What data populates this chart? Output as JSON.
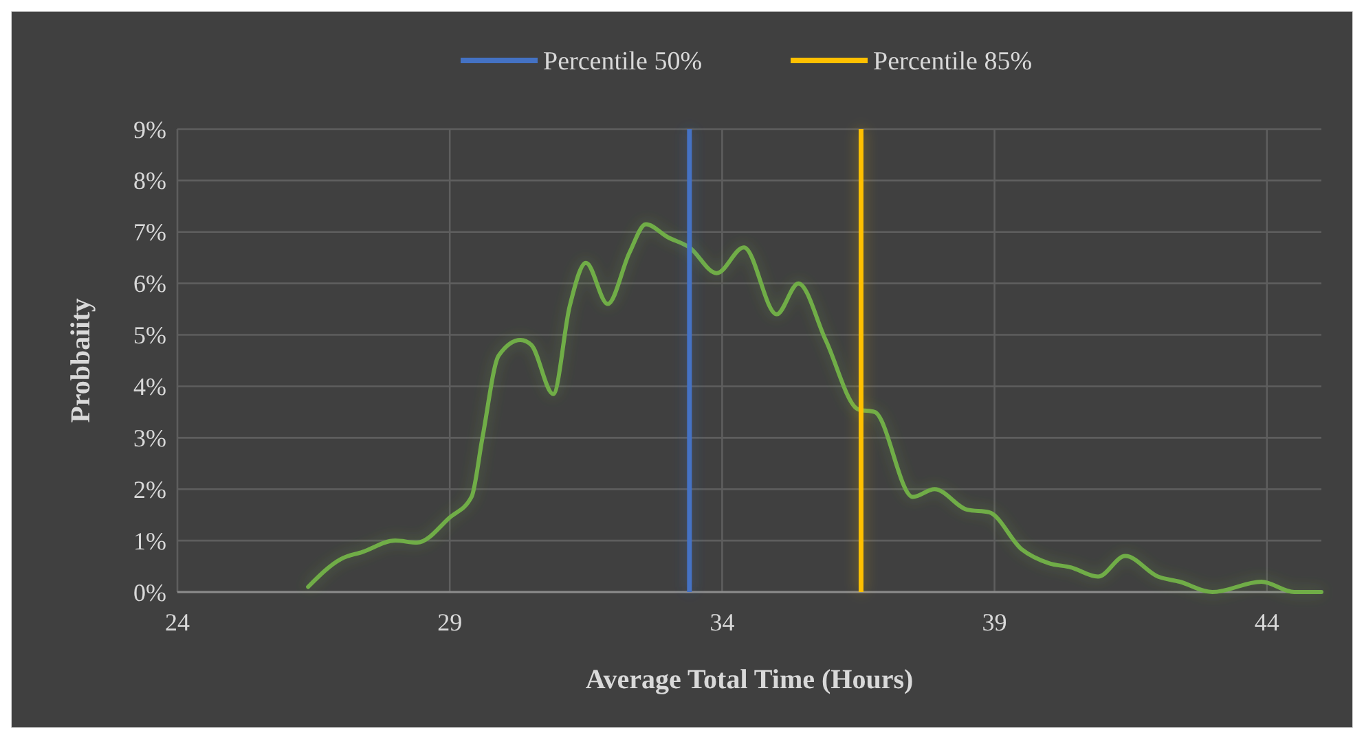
{
  "chart_data": {
    "type": "line",
    "xlabel": "Average Total Time (Hours)",
    "ylabel": "Probbaiity",
    "xlim": [
      24,
      45
    ],
    "xticks": [
      24,
      29,
      34,
      39,
      44
    ],
    "ylim": [
      0,
      9
    ],
    "yticks": [
      {
        "value": 0,
        "label": "0%"
      },
      {
        "value": 1,
        "label": "1%"
      },
      {
        "value": 2,
        "label": "2%"
      },
      {
        "value": 3,
        "label": "3%"
      },
      {
        "value": 4,
        "label": "4%"
      },
      {
        "value": 5,
        "label": "5%"
      },
      {
        "value": 6,
        "label": "6%"
      },
      {
        "value": 7,
        "label": "7%"
      },
      {
        "value": 8,
        "label": "8%"
      },
      {
        "value": 9,
        "label": "9%"
      }
    ],
    "grid": true,
    "legend": "top",
    "line_style": "solid",
    "marker": "none",
    "series": [
      {
        "color": "#70ad47",
        "x": [
          26.4,
          27.0,
          27.4,
          28.0,
          28.4,
          29.0,
          29.4,
          29.6,
          29.9,
          30.3,
          30.5,
          30.9,
          31.2,
          31.5,
          31.9,
          32.3,
          32.6,
          33.0,
          33.4,
          33.9,
          34.4,
          35.0,
          35.4,
          35.9,
          36.5,
          36.8,
          37.5,
          37.9,
          38.5,
          38.9,
          39.5,
          40.0,
          40.4,
          40.9,
          41.4,
          42.0,
          42.4,
          43.0,
          43.9,
          44.5,
          45.0
        ],
        "values": [
          0.1,
          0.64,
          0.78,
          1.0,
          0.96,
          1.45,
          1.85,
          3.0,
          4.6,
          4.9,
          4.8,
          3.85,
          5.55,
          6.4,
          5.6,
          6.6,
          7.15,
          6.9,
          6.7,
          6.2,
          6.7,
          5.4,
          6.0,
          4.9,
          3.55,
          3.5,
          1.85,
          2.0,
          1.6,
          1.55,
          0.83,
          0.56,
          0.48,
          0.3,
          0.7,
          0.3,
          0.2,
          0.0,
          0.2,
          0.0,
          0.0
        ]
      }
    ],
    "ref_lines": [
      {
        "axis": "x",
        "value": 33.4,
        "label": "Percentile 50%",
        "color": "#4472c4"
      },
      {
        "axis": "x",
        "value": 36.55,
        "label": "Percentile 85%",
        "color": "#ffc000"
      }
    ]
  }
}
